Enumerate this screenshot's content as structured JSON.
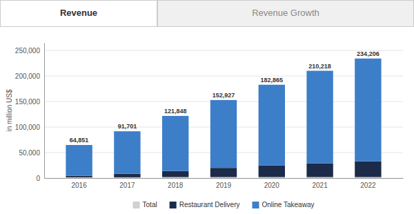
{
  "chart_data": {
    "type": "bar",
    "stacked": true,
    "title": "Revenue",
    "subtitle": "Revenue Growth",
    "categories": [
      "2016",
      "2017",
      "2018",
      "2019",
      "2020",
      "2021",
      "2022"
    ],
    "series": [
      {
        "name": "Total",
        "color": "#d0d0d0",
        "values": [
          1500,
          1500,
          2000,
          2000,
          2000,
          2000,
          2000
        ]
      },
      {
        "name": "Restaurant Delivery",
        "color": "#1c2b4a",
        "values": [
          3000,
          7000,
          12000,
          18000,
          23000,
          27000,
          31000
        ]
      },
      {
        "name": "Online Takeaway",
        "color": "#3d7ec9",
        "values": [
          60351,
          83201,
          107848,
          132927,
          157865,
          181218,
          201206
        ]
      }
    ],
    "totals": [
      64851,
      91701,
      121848,
      152927,
      182865,
      210218,
      234206
    ],
    "total_labels": [
      "64,851",
      "91,701",
      "121,848",
      "152,927",
      "182,865",
      "210,218",
      "234,206"
    ],
    "ylabel": "in million US$",
    "ylim": [
      0,
      265000
    ],
    "yticks": [
      0,
      {
        "value": 50000,
        "label": "50,000"
      },
      {
        "value": 100000,
        "label": "100,000"
      },
      {
        "value": 150000,
        "label": "150,000"
      },
      {
        "value": 200000,
        "label": "200,000"
      },
      {
        "value": 250000,
        "label": "250,000"
      }
    ],
    "grid": true,
    "legend": "bottom"
  }
}
